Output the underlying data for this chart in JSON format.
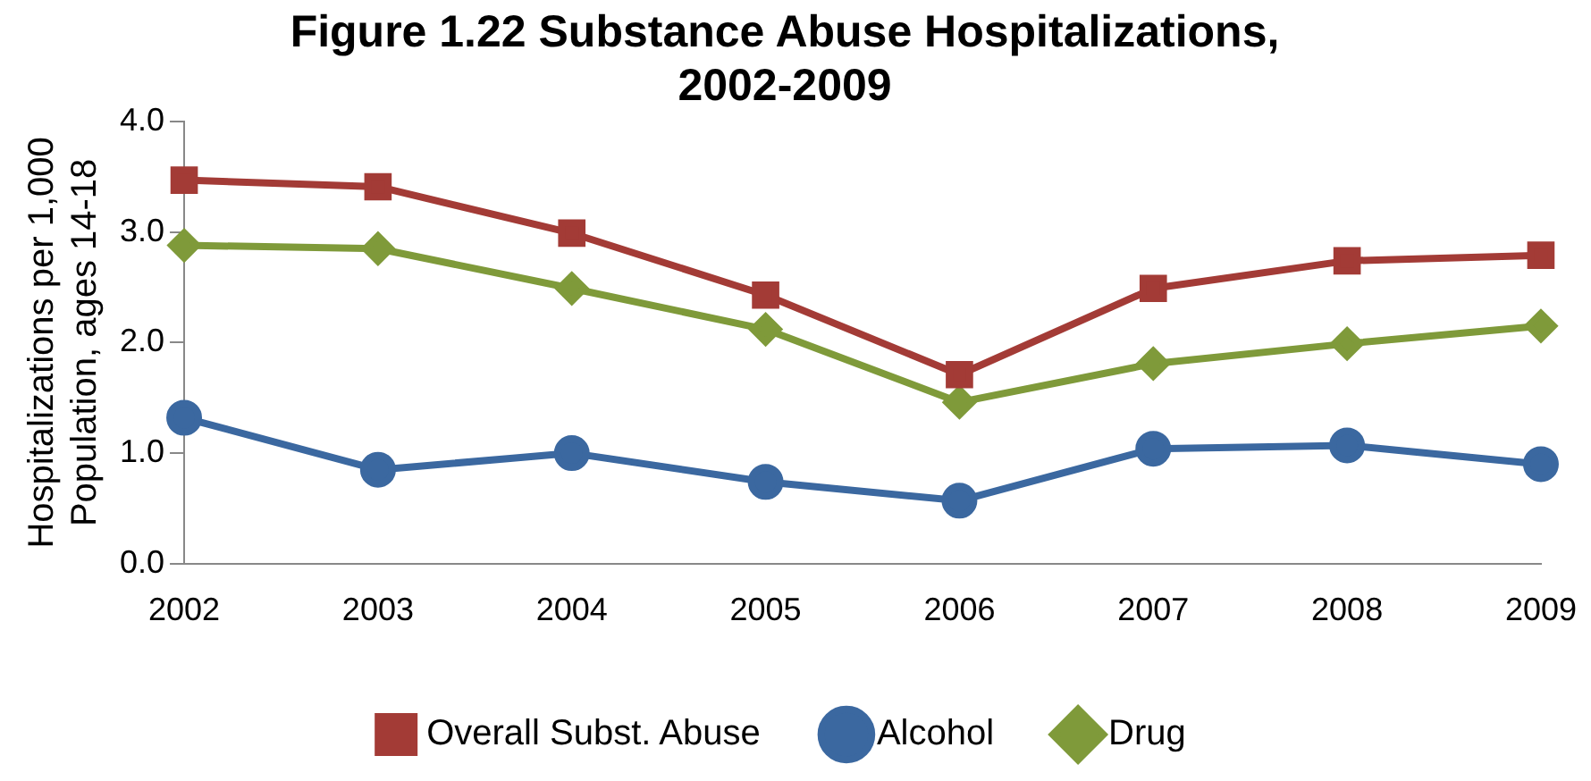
{
  "chart_data": {
    "type": "line",
    "title": "Figure 1.22 Substance Abuse Hospitalizations, 2002-2009",
    "ylabel": "Hospitalizations per 1,000 Population, ages 14-18",
    "categories": [
      "2002",
      "2003",
      "2004",
      "2005",
      "2006",
      "2007",
      "2008",
      "2009"
    ],
    "series": [
      {
        "name": "Overall Subst. Abuse",
        "color": "#a33b36",
        "marker": "square",
        "values": [
          3.47,
          3.41,
          2.99,
          2.43,
          1.71,
          2.49,
          2.74,
          2.79
        ]
      },
      {
        "name": "Alcohol",
        "color": "#3b68a0",
        "marker": "circle",
        "values": [
          1.32,
          0.85,
          1.0,
          0.74,
          0.57,
          1.04,
          1.07,
          0.9
        ]
      },
      {
        "name": "Drug",
        "color": "#7f9a3a",
        "marker": "diamond",
        "values": [
          2.88,
          2.85,
          2.49,
          2.12,
          1.46,
          1.81,
          1.99,
          2.15
        ]
      }
    ],
    "ylim": [
      0,
      4
    ],
    "yticks": [
      {
        "value": 0,
        "label": "0.0"
      },
      {
        "value": 1,
        "label": "1.0"
      },
      {
        "value": 2,
        "label": "2.0"
      },
      {
        "value": 3,
        "label": "3.0"
      },
      {
        "value": 4,
        "label": "4.0"
      }
    ],
    "grid": false,
    "legend": "bottom",
    "line_style": "solid"
  }
}
